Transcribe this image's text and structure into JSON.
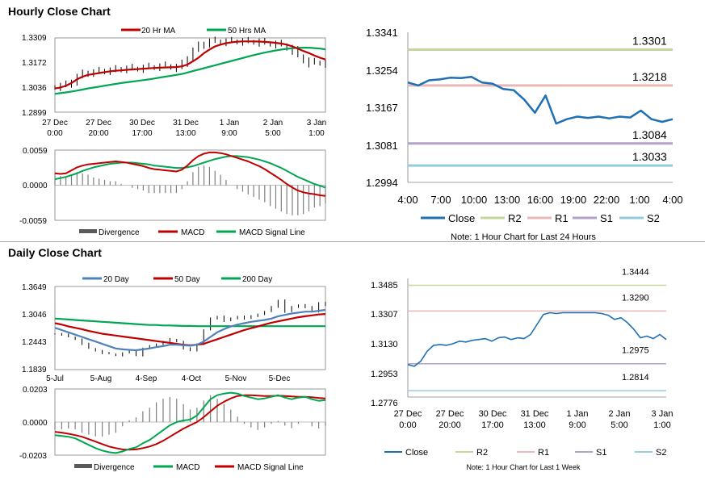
{
  "sections": {
    "hourly_title": "Hourly Close Chart",
    "daily_title": "Daily Close Chart"
  },
  "colors": {
    "red": "#c00000",
    "green": "#00a651",
    "blue": "#4f81bd",
    "dark_blue": "#1f6fb5",
    "grey": "#808080",
    "r2": "#c3d69b",
    "r1": "#e6b9b8",
    "s1": "#b3a2c7",
    "s2": "#93cddd"
  },
  "chart_data": [
    {
      "id": "hourly_price",
      "type": "line",
      "title": "",
      "legend": [
        "20 Hr MA",
        "50 Hrs MA"
      ],
      "yticks": [
        "1.3309",
        "1.3172",
        "1.3036",
        "1.2899"
      ],
      "ylim": [
        1.2899,
        1.3309
      ],
      "xticks": [
        [
          "27 Dec",
          "0:00"
        ],
        [
          "27 Dec",
          "20:00"
        ],
        [
          "30 Dec",
          "17:00"
        ],
        [
          "31 Dec",
          "13:00"
        ],
        [
          "1 Jan",
          "9:00"
        ],
        [
          "2 Jan",
          "5:00"
        ],
        [
          "3 Jan",
          "1:00"
        ]
      ],
      "close": [
        1.304,
        1.3045,
        1.305,
        1.307,
        1.3095,
        1.311,
        1.312,
        1.3118,
        1.3125,
        1.313,
        1.3128,
        1.3135,
        1.314,
        1.3138,
        1.3142,
        1.314,
        1.3145,
        1.3148,
        1.315,
        1.3152,
        1.3155,
        1.315,
        1.3145,
        1.3165,
        1.32,
        1.324,
        1.3265,
        1.328,
        1.329,
        1.3292,
        1.329,
        1.3288,
        1.329,
        1.3292,
        1.329,
        1.3288,
        1.329,
        1.3285,
        1.328,
        1.3278,
        1.3275,
        1.327,
        1.3255,
        1.324,
        1.321,
        1.3185,
        1.317,
        1.3175,
        1.3172,
        1.3168
      ],
      "ma20": [
        1.303,
        1.3035,
        1.3045,
        1.306,
        1.308,
        1.3095,
        1.3105,
        1.311,
        1.3115,
        1.312,
        1.3125,
        1.3128,
        1.313,
        1.3133,
        1.3135,
        1.3137,
        1.3139,
        1.3141,
        1.3143,
        1.3145,
        1.3146,
        1.3147,
        1.3148,
        1.3152,
        1.3162,
        1.318,
        1.32,
        1.3225,
        1.3245,
        1.3262,
        1.3272,
        1.328,
        1.3285,
        1.3288,
        1.329,
        1.329,
        1.329,
        1.3289,
        1.3287,
        1.3285,
        1.3282,
        1.3278,
        1.3272,
        1.3262,
        1.325,
        1.3237,
        1.3225,
        1.3212,
        1.32,
        1.319
      ],
      "ma50": [
        1.3,
        1.3004,
        1.3008,
        1.3013,
        1.3018,
        1.3024,
        1.303,
        1.3035,
        1.304,
        1.3045,
        1.305,
        1.3055,
        1.306,
        1.3064,
        1.3068,
        1.3072,
        1.3076,
        1.308,
        1.3085,
        1.309,
        1.3095,
        1.31,
        1.3105,
        1.311,
        1.3118,
        1.3126,
        1.3134,
        1.3142,
        1.315,
        1.3158,
        1.3166,
        1.3174,
        1.3182,
        1.319,
        1.3198,
        1.3206,
        1.3214,
        1.3221,
        1.3228,
        1.3234,
        1.324,
        1.3245,
        1.3249,
        1.3252,
        1.3254,
        1.3255,
        1.3255,
        1.3253,
        1.325,
        1.3246
      ]
    },
    {
      "id": "hourly_macd",
      "type": "line",
      "legend": [
        "Divergence",
        "MACD",
        "MACD Signal Line"
      ],
      "yticks": [
        "0.0059",
        "0.0000",
        "-0.0059"
      ],
      "ylim": [
        -0.0059,
        0.0059
      ],
      "macd": [
        0.002,
        0.0019,
        0.002,
        0.0025,
        0.003,
        0.0033,
        0.0035,
        0.0036,
        0.0037,
        0.0038,
        0.0039,
        0.004,
        0.0039,
        0.0038,
        0.0036,
        0.0034,
        0.0032,
        0.0029,
        0.0027,
        0.0026,
        0.0025,
        0.0024,
        0.0023,
        0.0026,
        0.0033,
        0.0042,
        0.0049,
        0.0053,
        0.0055,
        0.0055,
        0.0054,
        0.0052,
        0.0049,
        0.0046,
        0.0043,
        0.004,
        0.0036,
        0.0032,
        0.0027,
        0.0021,
        0.0015,
        0.0009,
        0.0002,
        -0.0004,
        -0.0009,
        -0.0012,
        -0.0014,
        -0.0015,
        -0.0017,
        -0.0018
      ],
      "signal": [
        0.001,
        0.0012,
        0.0014,
        0.0017,
        0.002,
        0.0024,
        0.0027,
        0.003,
        0.0032,
        0.0034,
        0.0036,
        0.0037,
        0.0038,
        0.0038,
        0.0038,
        0.0037,
        0.0036,
        0.0035,
        0.0033,
        0.0032,
        0.0031,
        0.003,
        0.0029,
        0.0029,
        0.003,
        0.0032,
        0.0035,
        0.0038,
        0.0041,
        0.0044,
        0.0046,
        0.0048,
        0.0049,
        0.0049,
        0.0048,
        0.0047,
        0.0045,
        0.0043,
        0.004,
        0.0037,
        0.0033,
        0.0029,
        0.0024,
        0.0019,
        0.0014,
        0.001,
        0.0006,
        0.0002,
        -0.0001,
        -0.0004
      ]
    },
    {
      "id": "hourly_24h",
      "type": "line",
      "title": "",
      "legend": [
        "Close",
        "R2",
        "R1",
        "S1",
        "S2"
      ],
      "yticks": [
        "1.3341",
        "1.3254",
        "1.3167",
        "1.3081",
        "1.2994"
      ],
      "ylim": [
        1.2994,
        1.3341
      ],
      "xticks": [
        "4:00",
        "7:00",
        "10:00",
        "13:00",
        "16:00",
        "19:00",
        "22:00",
        "1:00",
        "4:00"
      ],
      "close": [
        1.3225,
        1.3218,
        1.323,
        1.3232,
        1.3236,
        1.3235,
        1.3238,
        1.3225,
        1.3222,
        1.321,
        1.3207,
        1.3185,
        1.3155,
        1.3195,
        1.313,
        1.314,
        1.3146,
        1.3143,
        1.3146,
        1.3142,
        1.3146,
        1.3144,
        1.316,
        1.314,
        1.3134,
        1.314
      ],
      "levels": [
        {
          "name": "R2",
          "value": 1.3301,
          "label": "1.3301"
        },
        {
          "name": "R1",
          "value": 1.3218,
          "label": "1.3218"
        },
        {
          "name": "S1",
          "value": 1.3084,
          "label": "1.3084"
        },
        {
          "name": "S2",
          "value": 1.3033,
          "label": "1.3033"
        }
      ],
      "note": "Note: 1 Hour Chart for Last 24 Hours"
    },
    {
      "id": "daily_price",
      "type": "line",
      "legend": [
        "20 Day",
        "50 Day",
        "200 Day"
      ],
      "yticks": [
        "1.3649",
        "1.3046",
        "1.2443",
        "1.1839"
      ],
      "ylim": [
        1.1839,
        1.3649
      ],
      "xticks": [
        "5-Jul",
        "5-Aug",
        "4-Sep",
        "4-Oct",
        "5-Nov",
        "5-Dec"
      ],
      "close": [
        1.262,
        1.26,
        1.255,
        1.25,
        1.24,
        1.23,
        1.225,
        1.22,
        1.218,
        1.215,
        1.22,
        1.225,
        1.215,
        1.23,
        1.235,
        1.24,
        1.245,
        1.25,
        1.245,
        1.23,
        1.225,
        1.24,
        1.27,
        1.295,
        1.3,
        1.29,
        1.295,
        1.3,
        1.295,
        1.3,
        1.305,
        1.31,
        1.32,
        1.335,
        1.31,
        1.32,
        1.325,
        1.32,
        1.31,
        1.33,
        1.325
      ],
      "ma20": [
        1.275,
        1.27,
        1.265,
        1.26,
        1.255,
        1.25,
        1.245,
        1.24,
        1.235,
        1.23,
        1.228,
        1.227,
        1.226,
        1.228,
        1.23,
        1.233,
        1.235,
        1.238,
        1.238,
        1.237,
        1.236,
        1.238,
        1.245,
        1.255,
        1.265,
        1.272,
        1.278,
        1.282,
        1.285,
        1.288,
        1.29,
        1.292,
        1.295,
        1.3,
        1.303,
        1.306,
        1.308,
        1.31,
        1.31,
        1.312,
        1.314
      ],
      "ma50": [
        1.285,
        1.282,
        1.278,
        1.275,
        1.272,
        1.268,
        1.265,
        1.262,
        1.26,
        1.258,
        1.256,
        1.254,
        1.252,
        1.25,
        1.248,
        1.246,
        1.244,
        1.242,
        1.24,
        1.238,
        1.237,
        1.238,
        1.24,
        1.245,
        1.25,
        1.255,
        1.26,
        1.265,
        1.27,
        1.274,
        1.278,
        1.282,
        1.286,
        1.289,
        1.292,
        1.295,
        1.298,
        1.3,
        1.302,
        1.304,
        1.305
      ],
      "ma200": [
        1.295,
        1.294,
        1.293,
        1.292,
        1.291,
        1.29,
        1.289,
        1.288,
        1.287,
        1.286,
        1.285,
        1.284,
        1.283,
        1.282,
        1.281,
        1.281,
        1.28,
        1.28,
        1.2795,
        1.279,
        1.279,
        1.2785,
        1.2785,
        1.2785,
        1.2785,
        1.2785,
        1.2785,
        1.2785,
        1.2785,
        1.2785,
        1.2785,
        1.2785,
        1.2785,
        1.2785,
        1.2785,
        1.2785,
        1.2785,
        1.2785,
        1.2785,
        1.2785,
        1.2785
      ]
    },
    {
      "id": "daily_macd",
      "type": "line",
      "legend": [
        "Divergence",
        "MACD",
        "MACD Signal Line"
      ],
      "yticks": [
        "0.0203",
        "0.0000",
        "-0.0203"
      ],
      "ylim": [
        -0.0203,
        0.0203
      ],
      "macd": [
        -0.008,
        -0.0085,
        -0.009,
        -0.01,
        -0.012,
        -0.014,
        -0.016,
        -0.0175,
        -0.0185,
        -0.019,
        -0.018,
        -0.0165,
        -0.0155,
        -0.013,
        -0.011,
        -0.008,
        -0.005,
        -0.002,
        0.0,
        0.001,
        0.0015,
        0.004,
        0.009,
        0.014,
        0.0165,
        0.0175,
        0.018,
        0.0175,
        0.016,
        0.015,
        0.014,
        0.0145,
        0.0155,
        0.0165,
        0.015,
        0.014,
        0.015,
        0.0155,
        0.014,
        0.013,
        0.0135
      ],
      "signal": [
        -0.006,
        -0.0065,
        -0.0072,
        -0.008,
        -0.009,
        -0.0105,
        -0.012,
        -0.0135,
        -0.015,
        -0.016,
        -0.0168,
        -0.017,
        -0.0168,
        -0.016,
        -0.015,
        -0.0135,
        -0.0115,
        -0.009,
        -0.0065,
        -0.004,
        -0.002,
        0.0,
        0.003,
        0.0065,
        0.01,
        0.0125,
        0.0145,
        0.016,
        0.0165,
        0.0165,
        0.0162,
        0.016,
        0.016,
        0.0162,
        0.016,
        0.0157,
        0.0155,
        0.0155,
        0.0152,
        0.0148,
        0.0145
      ]
    },
    {
      "id": "daily_week",
      "type": "line",
      "legend": [
        "Close",
        "R2",
        "R1",
        "S1",
        "S2"
      ],
      "yticks": [
        "1.3485",
        "1.3307",
        "1.3130",
        "1.2953",
        "1.2776"
      ],
      "ylim": [
        1.2776,
        1.3485
      ],
      "xticks": [
        [
          "27 Dec",
          "0:00"
        ],
        [
          "27 Dec",
          "20:00"
        ],
        [
          "30 Dec",
          "17:00"
        ],
        [
          "31 Dec",
          "13:00"
        ],
        [
          "1 Jan",
          "9:00"
        ],
        [
          "2 Jan",
          "5:00"
        ],
        [
          "3 Jan",
          "1:00"
        ]
      ],
      "close": [
        1.297,
        1.296,
        1.299,
        1.305,
        1.3085,
        1.309,
        1.3085,
        1.3095,
        1.311,
        1.3105,
        1.3115,
        1.312,
        1.3125,
        1.311,
        1.313,
        1.3135,
        1.312,
        1.313,
        1.3125,
        1.315,
        1.321,
        1.327,
        1.328,
        1.3275,
        1.328,
        1.328,
        1.328,
        1.328,
        1.328,
        1.328,
        1.3275,
        1.3265,
        1.324,
        1.325,
        1.322,
        1.318,
        1.313,
        1.314,
        1.3125,
        1.315,
        1.312
      ],
      "levels": [
        {
          "name": "R2",
          "value": 1.3444,
          "label": "1.3444"
        },
        {
          "name": "R1",
          "value": 1.329,
          "label": "1.3290"
        },
        {
          "name": "S1",
          "value": 1.2975,
          "label": "1.2975"
        },
        {
          "name": "S2",
          "value": 1.2814,
          "label": "1.2814"
        }
      ],
      "note": "Note: 1 Hour Chart for Last 1 Week"
    }
  ]
}
